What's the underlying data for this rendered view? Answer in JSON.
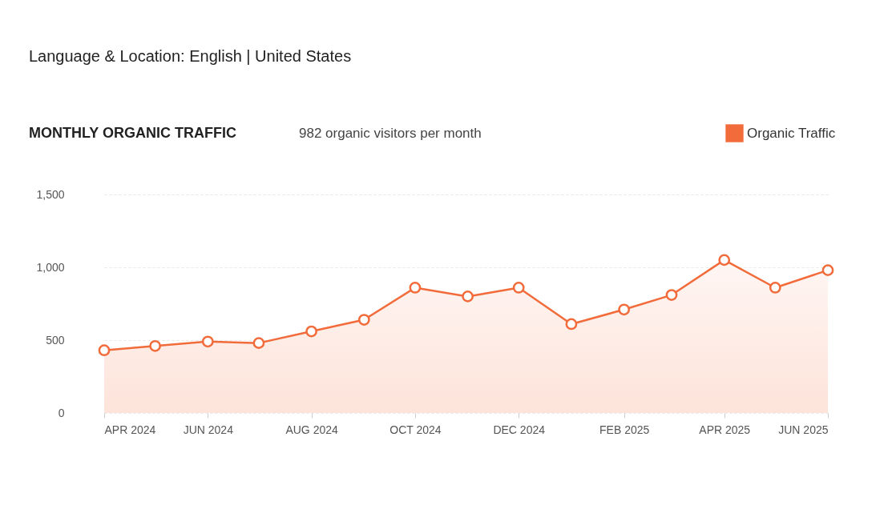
{
  "chart_data": {
    "type": "area",
    "title": "MONTHLY ORGANIC TRAFFIC",
    "subtitle": "982 organic visitors per month",
    "annotations": [
      "Language & Location: English | United States"
    ],
    "x": [
      "2024-04",
      "2024-05",
      "2024-06",
      "2024-07",
      "2024-08",
      "2024-09",
      "2024-10",
      "2024-11",
      "2024-12",
      "2025-01",
      "2025-02",
      "2025-03",
      "2025-04",
      "2025-05",
      "2025-06"
    ],
    "series": [
      {
        "name": "Organic Traffic",
        "color": "#f26b3a",
        "values": [
          430,
          460,
          490,
          480,
          560,
          640,
          860,
          800,
          860,
          610,
          710,
          810,
          1050,
          860,
          980
        ]
      }
    ],
    "xlim": [
      "2024-04",
      "2025-06"
    ],
    "xticks": [
      {
        "value": "2024-04",
        "label": "APR 2024"
      },
      {
        "value": "2024-06",
        "label": "JUN 2024"
      },
      {
        "value": "2024-08",
        "label": "AUG 2024"
      },
      {
        "value": "2024-10",
        "label": "OCT 2024"
      },
      {
        "value": "2024-12",
        "label": "DEC 2024"
      },
      {
        "value": "2025-02",
        "label": "FEB 2025"
      },
      {
        "value": "2025-04",
        "label": "APR 2025"
      },
      {
        "value": "2025-06",
        "label": "JUN 2025"
      }
    ],
    "ylim": [
      0,
      1500
    ],
    "yticks": [
      0,
      500,
      {
        "value": 1000,
        "label": "1,000"
      },
      {
        "value": 1500,
        "label": "1,500"
      }
    ],
    "grid": "y",
    "legend": "top right",
    "marker": "circle",
    "line_style": "solid"
  }
}
